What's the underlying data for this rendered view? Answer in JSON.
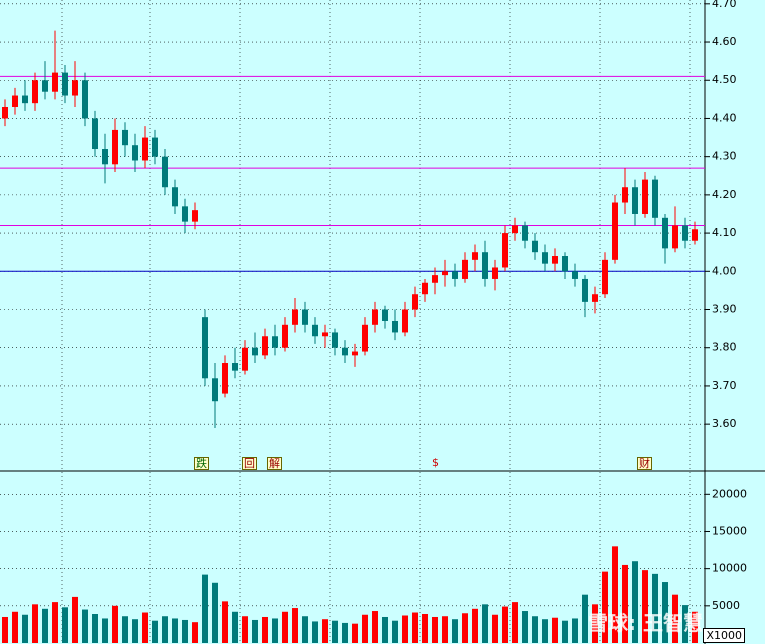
{
  "chart_data": [
    {
      "type": "candlestick",
      "up_color": "#ff0000",
      "down_color": "#007a7a",
      "open": [
        4.4,
        4.43,
        4.46,
        4.44,
        4.5,
        4.47,
        4.52,
        4.46,
        4.5,
        4.4,
        4.32,
        4.28,
        4.37,
        4.33,
        4.29,
        4.35,
        4.3,
        4.22,
        4.17,
        4.13,
        3.88,
        3.72,
        3.68,
        3.76,
        3.74,
        3.8,
        3.78,
        3.83,
        3.8,
        3.86,
        3.9,
        3.86,
        3.83,
        3.84,
        3.8,
        3.78,
        3.79,
        3.86,
        3.9,
        3.87,
        3.84,
        3.9,
        3.94,
        3.97,
        3.99,
        4.0,
        3.98,
        4.03,
        4.05,
        3.98,
        4.01,
        4.1,
        4.12,
        4.08,
        4.05,
        4.02,
        4.04,
        4.0,
        3.98,
        3.92,
        3.94,
        4.03,
        4.18,
        4.22,
        4.15,
        4.24,
        4.14,
        4.06,
        4.12,
        4.08
      ],
      "high": [
        4.45,
        4.48,
        4.5,
        4.52,
        4.55,
        4.63,
        4.54,
        4.55,
        4.52,
        4.42,
        4.36,
        4.4,
        4.39,
        4.36,
        4.38,
        4.37,
        4.32,
        4.24,
        4.19,
        4.18,
        3.9,
        3.76,
        3.78,
        3.8,
        3.82,
        3.84,
        3.85,
        3.86,
        3.88,
        3.93,
        3.92,
        3.88,
        3.86,
        3.85,
        3.82,
        3.81,
        3.88,
        3.92,
        3.91,
        3.9,
        3.92,
        3.96,
        3.98,
        4.01,
        4.03,
        4.02,
        4.05,
        4.07,
        4.08,
        4.03,
        4.12,
        4.14,
        4.13,
        4.1,
        4.07,
        4.06,
        4.05,
        4.02,
        3.99,
        3.96,
        4.05,
        4.2,
        4.27,
        4.24,
        4.26,
        4.25,
        4.15,
        4.17,
        4.14,
        4.13
      ],
      "low": [
        4.38,
        4.41,
        4.42,
        4.42,
        4.45,
        4.45,
        4.44,
        4.43,
        4.38,
        4.3,
        4.23,
        4.26,
        4.3,
        4.26,
        4.27,
        4.28,
        4.2,
        4.15,
        4.1,
        4.11,
        3.7,
        3.59,
        3.67,
        3.72,
        3.73,
        3.76,
        3.77,
        3.78,
        3.79,
        3.84,
        3.84,
        3.81,
        3.8,
        3.78,
        3.76,
        3.75,
        3.78,
        3.84,
        3.85,
        3.82,
        3.83,
        3.88,
        3.92,
        3.94,
        3.96,
        3.96,
        3.97,
        4.0,
        3.96,
        3.95,
        4.0,
        4.08,
        4.06,
        4.03,
        4.0,
        4.0,
        3.98,
        3.96,
        3.88,
        3.89,
        3.93,
        4.02,
        4.15,
        4.12,
        4.14,
        4.12,
        4.02,
        4.05,
        4.06,
        4.07
      ],
      "close": [
        4.43,
        4.46,
        4.44,
        4.5,
        4.47,
        4.52,
        4.46,
        4.5,
        4.4,
        4.32,
        4.28,
        4.37,
        4.33,
        4.29,
        4.35,
        4.3,
        4.22,
        4.17,
        4.13,
        4.16,
        3.72,
        3.66,
        3.76,
        3.74,
        3.8,
        3.78,
        3.83,
        3.8,
        3.86,
        3.9,
        3.86,
        3.83,
        3.84,
        3.8,
        3.78,
        3.79,
        3.86,
        3.9,
        3.87,
        3.84,
        3.9,
        3.94,
        3.97,
        3.99,
        4.0,
        3.98,
        4.03,
        4.05,
        3.98,
        4.01,
        4.1,
        4.12,
        4.08,
        4.05,
        4.02,
        4.04,
        4.0,
        3.98,
        3.92,
        3.94,
        4.03,
        4.18,
        4.22,
        4.15,
        4.24,
        4.14,
        4.06,
        4.12,
        4.08,
        4.11
      ],
      "hlines": [
        {
          "value": 4.51,
          "color": "#e000e0"
        },
        {
          "value": 4.27,
          "color": "#e000e0"
        },
        {
          "value": 4.12,
          "color": "#e000e0"
        },
        {
          "value": 4.0,
          "color": "#0000c0"
        }
      ],
      "ylim": [
        3.48,
        4.71
      ],
      "yticks": [
        {
          "value": 3.6,
          "label": "3.60"
        },
        {
          "value": 3.7,
          "label": "3.70"
        },
        {
          "value": 3.8,
          "label": "3.80"
        },
        {
          "value": 3.9,
          "label": "3.90"
        },
        {
          "value": 4.0,
          "label": "4.00"
        },
        {
          "value": 4.1,
          "label": "4.10"
        },
        {
          "value": 4.2,
          "label": "4.20"
        },
        {
          "value": 4.3,
          "label": "4.30"
        },
        {
          "value": 4.4,
          "label": "4.40"
        },
        {
          "value": 4.5,
          "label": "4.50"
        },
        {
          "value": 4.6,
          "label": "4.60"
        },
        {
          "value": 4.7,
          "label": "4.70"
        }
      ],
      "grid": true,
      "markers": [
        "跌",
        "回",
        "解",
        "$",
        "财"
      ]
    },
    {
      "type": "bar",
      "values": [
        3500,
        4200,
        3800,
        5200,
        4600,
        5500,
        4800,
        6200,
        4500,
        3900,
        3300,
        5000,
        3600,
        3200,
        4100,
        3000,
        3600,
        3300,
        3100,
        2800,
        9200,
        8100,
        5600,
        4200,
        3600,
        3100,
        3500,
        3300,
        4200,
        4700,
        3600,
        2900,
        3200,
        3000,
        2700,
        2600,
        3800,
        4300,
        3500,
        3000,
        3700,
        4100,
        3900,
        3500,
        3600,
        3200,
        4000,
        4600,
        5200,
        3800,
        4900,
        5500,
        4300,
        3600,
        3200,
        3400,
        3000,
        3300,
        6500,
        5200,
        9600,
        13000,
        10500,
        11000,
        9800,
        9300,
        8200,
        6500,
        5100,
        4200
      ],
      "ylim": [
        0,
        23000
      ],
      "yticks": [
        5000,
        10000,
        15000,
        20000
      ],
      "grid": true,
      "unit": "X1000",
      "watermark": "雪球: 王智慧"
    }
  ]
}
